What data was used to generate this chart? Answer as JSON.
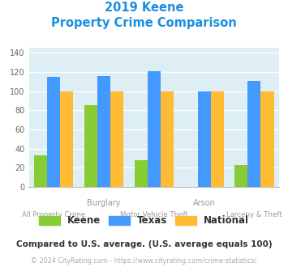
{
  "title_line1": "2019 Keene",
  "title_line2": "Property Crime Comparison",
  "title_color": "#1a8fe0",
  "categories": [
    "All Property Crime",
    "Burglary",
    "Motor Vehicle Theft",
    "Arson",
    "Larceny & Theft"
  ],
  "top_labels": [
    "",
    "Burglary",
    "",
    "Arson",
    ""
  ],
  "bot_labels": [
    "All Property Crime",
    "",
    "Motor Vehicle Theft",
    "",
    "Larceny & Theft"
  ],
  "keene": [
    33,
    85,
    28,
    0,
    23
  ],
  "texas": [
    115,
    116,
    121,
    100,
    111
  ],
  "national": [
    100,
    100,
    100,
    100,
    100
  ],
  "keene_color": "#88cc33",
  "texas_color": "#4499ff",
  "national_color": "#ffbb33",
  "bg_color": "#ddeef5",
  "ylim": [
    0,
    145
  ],
  "yticks": [
    0,
    20,
    40,
    60,
    80,
    100,
    120,
    140
  ],
  "footnote1": "Compared to U.S. average. (U.S. average equals 100)",
  "footnote2": "© 2024 CityRating.com - https://www.cityrating.com/crime-statistics/",
  "footnote1_color": "#333333",
  "footnote2_color": "#aaaaaa"
}
